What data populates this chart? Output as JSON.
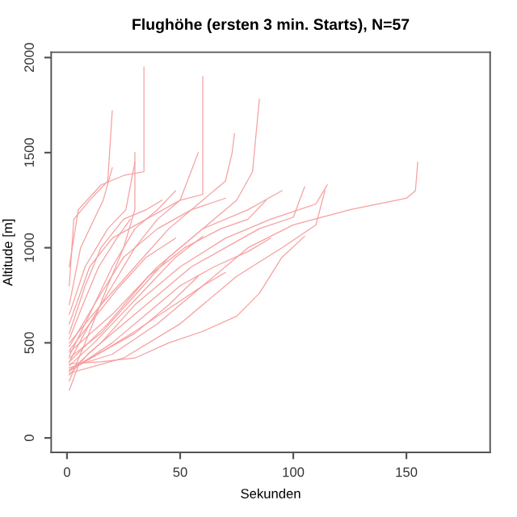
{
  "chart_data": {
    "type": "line",
    "title": "Flughöhe (ersten 3 min. Starts), N=57",
    "xlabel": "Sekunden",
    "ylabel": "Altitude [m]",
    "xlim": [
      -7,
      187
    ],
    "ylim": [
      -76,
      2028
    ],
    "xticks": [
      0,
      50,
      100,
      150
    ],
    "yticks": [
      0,
      500,
      1000,
      1500,
      2000
    ],
    "grid": false,
    "marker": "none",
    "line_style": "solid",
    "series": [
      {
        "color": "#f6a0a0",
        "x": [
          1,
          15,
          30,
          45,
          60,
          75,
          85,
          95,
          105
        ],
        "values": [
          390,
          400,
          420,
          500,
          560,
          640,
          760,
          950,
          1060
        ]
      },
      {
        "color": "#f6a0a0",
        "x": [
          1,
          20,
          40,
          60,
          80,
          100,
          125,
          150,
          154,
          155
        ],
        "values": [
          370,
          440,
          600,
          800,
          1000,
          1120,
          1200,
          1260,
          1300,
          1450
        ]
      },
      {
        "color": "#f6a0a0",
        "x": [
          1,
          15,
          30,
          50,
          70,
          90,
          110,
          115
        ],
        "values": [
          350,
          500,
          700,
          900,
          1050,
          1150,
          1230,
          1330
        ]
      },
      {
        "color": "#f6a0a0",
        "x": [
          1,
          3,
          10,
          18,
          20
        ],
        "values": [
          800,
          1150,
          1250,
          1350,
          1720
        ]
      },
      {
        "color": "#f6a0a0",
        "x": [
          1,
          5,
          15,
          25,
          34,
          34
        ],
        "values": [
          900,
          1200,
          1330,
          1380,
          1400,
          1950
        ]
      },
      {
        "color": "#f6a0a0",
        "x": [
          1,
          10,
          20,
          35,
          50,
          60,
          60
        ],
        "values": [
          600,
          900,
          1050,
          1150,
          1250,
          1280,
          1900
        ]
      },
      {
        "color": "#f6a0a0",
        "x": [
          1,
          15,
          30,
          45,
          60,
          70,
          73,
          74
        ],
        "values": [
          500,
          700,
          900,
          1100,
          1250,
          1350,
          1500,
          1600
        ]
      },
      {
        "color": "#f6a0a0",
        "x": [
          1,
          20,
          40,
          60,
          75,
          82,
          85
        ],
        "values": [
          450,
          650,
          900,
          1100,
          1250,
          1400,
          1780
        ]
      },
      {
        "color": "#f6a0a0",
        "x": [
          1,
          10,
          20,
          30,
          40,
          50,
          58
        ],
        "values": [
          400,
          600,
          800,
          1000,
          1150,
          1250,
          1500
        ]
      },
      {
        "color": "#f6a0a0",
        "x": [
          1,
          8,
          18,
          25,
          30,
          30
        ],
        "values": [
          300,
          500,
          800,
          1000,
          1200,
          1500
        ]
      },
      {
        "color": "#f6a0a0",
        "x": [
          1,
          10,
          25,
          40,
          55,
          70,
          85,
          100,
          105
        ],
        "values": [
          330,
          450,
          600,
          750,
          900,
          1000,
          1100,
          1160,
          1320
        ]
      },
      {
        "color": "#f6a0a0",
        "x": [
          1,
          15,
          30,
          45,
          60,
          80,
          95
        ],
        "values": [
          420,
          550,
          750,
          950,
          1100,
          1200,
          1300
        ]
      },
      {
        "color": "#f6a0a0",
        "x": [
          1,
          12,
          25,
          40,
          55,
          70
        ],
        "values": [
          480,
          700,
          950,
          1100,
          1200,
          1260
        ]
      },
      {
        "color": "#f6a0a0",
        "x": [
          1,
          20,
          35,
          50,
          65,
          80,
          90
        ],
        "values": [
          350,
          500,
          650,
          800,
          900,
          980,
          1050
        ]
      },
      {
        "color": "#f6a0a0",
        "x": [
          1,
          8,
          15,
          25,
          35,
          42
        ],
        "values": [
          550,
          800,
          1000,
          1150,
          1200,
          1250
        ]
      },
      {
        "color": "#f6a0a0",
        "x": [
          1,
          12,
          24,
          36,
          48,
          60
        ],
        "values": [
          380,
          500,
          650,
          800,
          950,
          1060
        ]
      },
      {
        "color": "#f6a0a0",
        "x": [
          1,
          10,
          20,
          30,
          40,
          48
        ],
        "values": [
          430,
          650,
          900,
          1100,
          1200,
          1300
        ]
      },
      {
        "color": "#f6a0a0",
        "x": [
          1,
          5,
          15,
          30,
          45,
          58
        ],
        "values": [
          250,
          380,
          450,
          550,
          700,
          850
        ]
      },
      {
        "color": "#f6a0a0",
        "x": [
          1,
          8,
          18,
          26,
          30
        ],
        "values": [
          650,
          900,
          1100,
          1200,
          1450
        ]
      },
      {
        "color": "#f6a0a0",
        "x": [
          1,
          15,
          30,
          45,
          60,
          70
        ],
        "values": [
          360,
          450,
          560,
          680,
          800,
          870
        ]
      },
      {
        "color": "#f6a0a0",
        "x": [
          1,
          10,
          22,
          35,
          48
        ],
        "values": [
          460,
          600,
          780,
          950,
          1050
        ]
      },
      {
        "color": "#f6a0a0",
        "x": [
          1,
          7,
          14,
          22,
          28
        ],
        "values": [
          520,
          700,
          900,
          1050,
          1150
        ]
      },
      {
        "color": "#f6a0a0",
        "x": [
          1,
          18,
          36,
          52,
          68,
          80,
          88
        ],
        "values": [
          400,
          600,
          850,
          1000,
          1100,
          1150,
          1250
        ]
      },
      {
        "color": "#f6a0a0",
        "x": [
          1,
          6,
          12,
          16,
          20
        ],
        "values": [
          700,
          1000,
          1150,
          1250,
          1420
        ]
      },
      {
        "color": "#f6a0a0",
        "x": [
          1,
          25,
          50,
          75,
          95,
          110,
          114
        ],
        "values": [
          340,
          420,
          600,
          850,
          1000,
          1120,
          1300
        ]
      }
    ]
  }
}
